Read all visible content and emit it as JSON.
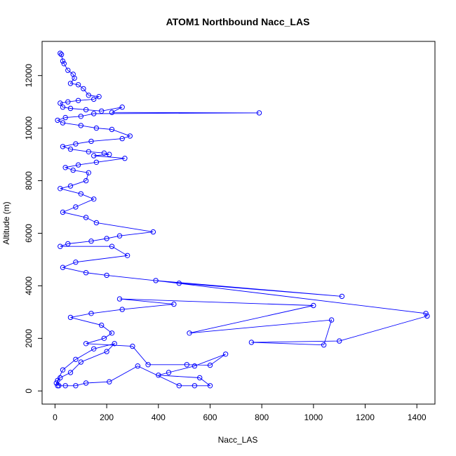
{
  "chart_data": {
    "type": "line",
    "title": "ATOM1 Northbound Nacc_LAS",
    "xlabel": "Nacc_LAS",
    "ylabel": "Altitude (m)",
    "xlim": [
      -50,
      1470
    ],
    "ylim": [
      -500,
      13300
    ],
    "x_ticks": [
      0,
      200,
      400,
      600,
      800,
      1000,
      1200,
      1400
    ],
    "y_ticks": [
      0,
      2000,
      4000,
      6000,
      8000,
      10000,
      12000
    ],
    "grid": false,
    "color": "#0000ff",
    "series": [
      {
        "points": [
          [
            20,
            12850
          ],
          [
            25,
            12800
          ],
          [
            30,
            12550
          ],
          [
            35,
            12450
          ],
          [
            50,
            12200
          ],
          [
            70,
            12050
          ],
          [
            75,
            11900
          ],
          [
            60,
            11700
          ],
          [
            90,
            11650
          ],
          [
            110,
            11500
          ],
          [
            130,
            11250
          ],
          [
            170,
            11200
          ],
          [
            150,
            11100
          ],
          [
            90,
            11050
          ],
          [
            50,
            11000
          ],
          [
            20,
            10950
          ],
          [
            30,
            10800
          ],
          [
            60,
            10750
          ],
          [
            120,
            10700
          ],
          [
            180,
            10650
          ],
          [
            260,
            10800
          ],
          [
            220,
            10600
          ],
          [
            790,
            10580
          ],
          [
            150,
            10550
          ],
          [
            100,
            10450
          ],
          [
            40,
            10400
          ],
          [
            10,
            10300
          ],
          [
            30,
            10200
          ],
          [
            100,
            10100
          ],
          [
            160,
            10000
          ],
          [
            220,
            9950
          ],
          [
            290,
            9700
          ],
          [
            260,
            9600
          ],
          [
            140,
            9500
          ],
          [
            80,
            9400
          ],
          [
            30,
            9300
          ],
          [
            60,
            9200
          ],
          [
            130,
            9100
          ],
          [
            190,
            9050
          ],
          [
            210,
            9000
          ],
          [
            150,
            8950
          ],
          [
            270,
            8850
          ],
          [
            160,
            8700
          ],
          [
            90,
            8600
          ],
          [
            40,
            8500
          ],
          [
            70,
            8400
          ],
          [
            130,
            8300
          ],
          [
            120,
            8000
          ],
          [
            60,
            7800
          ],
          [
            20,
            7700
          ],
          [
            100,
            7500
          ],
          [
            150,
            7300
          ],
          [
            80,
            7000
          ],
          [
            30,
            6800
          ],
          [
            120,
            6600
          ],
          [
            160,
            6400
          ],
          [
            380,
            6050
          ],
          [
            250,
            5900
          ],
          [
            200,
            5800
          ],
          [
            140,
            5700
          ],
          [
            50,
            5600
          ],
          [
            20,
            5500
          ],
          [
            220,
            5500
          ],
          [
            280,
            5150
          ],
          [
            80,
            4900
          ],
          [
            30,
            4700
          ],
          [
            120,
            4500
          ],
          [
            200,
            4400
          ],
          [
            480,
            4100
          ],
          [
            1110,
            3600
          ],
          [
            390,
            4200
          ],
          [
            1435,
            2950
          ],
          [
            1440,
            2850
          ],
          [
            1100,
            1900
          ],
          [
            760,
            1850
          ],
          [
            1040,
            1750
          ],
          [
            1070,
            2700
          ],
          [
            520,
            2200
          ],
          [
            1000,
            3250
          ],
          [
            250,
            3500
          ],
          [
            460,
            3300
          ],
          [
            260,
            3100
          ],
          [
            140,
            2950
          ],
          [
            60,
            2800
          ],
          [
            180,
            2500
          ],
          [
            220,
            2200
          ],
          [
            190,
            2000
          ],
          [
            120,
            1800
          ],
          [
            300,
            1700
          ],
          [
            360,
            1000
          ],
          [
            510,
            1000
          ],
          [
            600,
            980
          ],
          [
            660,
            1400
          ],
          [
            540,
            950
          ],
          [
            440,
            700
          ],
          [
            400,
            600
          ],
          [
            560,
            500
          ],
          [
            600,
            200
          ],
          [
            540,
            200
          ],
          [
            480,
            200
          ],
          [
            320,
            950
          ],
          [
            210,
            350
          ],
          [
            120,
            300
          ],
          [
            80,
            200
          ],
          [
            40,
            200
          ],
          [
            15,
            200
          ],
          [
            10,
            400
          ],
          [
            30,
            800
          ],
          [
            80,
            1200
          ],
          [
            150,
            1600
          ],
          [
            230,
            1800
          ],
          [
            200,
            1500
          ],
          [
            100,
            1100
          ],
          [
            60,
            700
          ],
          [
            20,
            500
          ],
          [
            5,
            300
          ],
          [
            10,
            200
          ]
        ]
      }
    ]
  }
}
